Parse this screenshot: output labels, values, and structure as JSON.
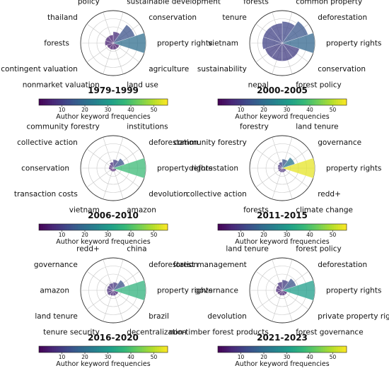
{
  "figure": {
    "colormap": "viridis",
    "cmap_stops": [
      "#440154",
      "#482878",
      "#3e4989",
      "#31688e",
      "#26828e",
      "#1f9e89",
      "#35b779",
      "#6ece58",
      "#b5de2b",
      "#fde725"
    ],
    "wedge_alpha": 0.75,
    "colorbar": {
      "vmin": 0,
      "vmax": 56,
      "ticks": [
        10,
        20,
        30,
        40,
        50
      ],
      "label": "Author keyword frequencies"
    }
  },
  "chart_data": [
    {
      "type": "polar-bar",
      "title": "1979-1999",
      "categories": [
        "property rights",
        "conservation",
        "sustainable development",
        "policy",
        "thailand",
        "forests",
        "contingent valuation",
        "nonmarket valuation",
        "land use",
        "agriculture"
      ],
      "values": [
        20,
        14,
        7,
        5,
        5,
        5,
        4,
        4,
        4,
        4
      ],
      "rmax": 20
    },
    {
      "type": "polar-bar",
      "title": "2000-2005",
      "categories": [
        "property rights",
        "deforestation",
        "common property",
        "forests",
        "tenure",
        "vietnam",
        "sustainability",
        "nepal",
        "forest policy",
        "conservation"
      ],
      "values": [
        18,
        15,
        12,
        11,
        11,
        11,
        10,
        10,
        10,
        10
      ],
      "rmax": 18
    },
    {
      "type": "polar-bar",
      "title": "2006-2010",
      "categories": [
        "property rights",
        "deforestation",
        "institutions",
        "community forestry",
        "collective action",
        "conservation",
        "transaction costs",
        "vietnam",
        "amazon",
        "devolution"
      ],
      "values": [
        38,
        14,
        10,
        7,
        5,
        5,
        4,
        4,
        4,
        4
      ],
      "rmax": 38
    },
    {
      "type": "polar-bar",
      "title": "2011-2015",
      "categories": [
        "property rights",
        "governance",
        "land tenure",
        "forestry",
        "community forestry",
        "deforestation",
        "collective action",
        "forests",
        "climate change",
        "redd+"
      ],
      "values": [
        54,
        22,
        15,
        10,
        8,
        7,
        7,
        7,
        7,
        7
      ],
      "rmax": 54
    },
    {
      "type": "polar-bar",
      "title": "2016-2020",
      "categories": [
        "property rights",
        "deforestation",
        "china",
        "redd+",
        "governance",
        "amazon",
        "land tenure",
        "tenure security",
        "decentralization",
        "brazil"
      ],
      "values": [
        36,
        14,
        9,
        8,
        7,
        7,
        7,
        6,
        6,
        6
      ],
      "rmax": 36
    },
    {
      "type": "polar-bar",
      "title": "2021-2023",
      "categories": [
        "property rights",
        "deforestation",
        "forest policy",
        "land tenure",
        "forest management",
        "governance",
        "devolution",
        "non-timber forest products",
        "forest governance",
        "private property rights"
      ],
      "values": [
        31,
        14,
        10,
        8,
        6,
        6,
        5,
        5,
        5,
        5
      ],
      "rmax": 31
    }
  ]
}
